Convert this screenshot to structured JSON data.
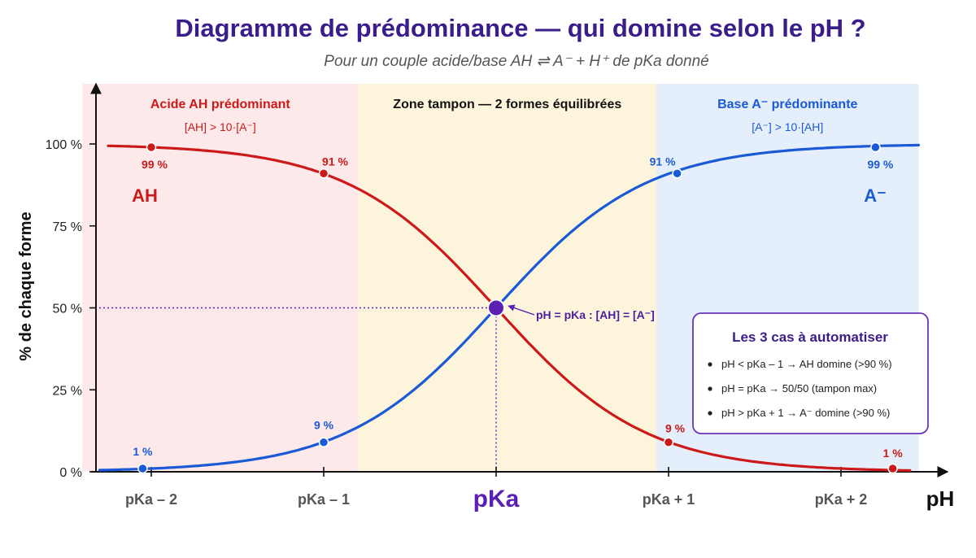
{
  "chart_data": {
    "type": "line",
    "title": "Diagramme de prédominance — qui domine selon le pH ?",
    "subtitle": "Pour un couple acide/base AH ⇌ A⁻ + H⁺ de pKa donné",
    "xlabel": "pH",
    "ylabel": "% de chaque forme",
    "xlim": [
      -2.4,
      2.6
    ],
    "ylim": [
      0,
      100
    ],
    "x_ticks": [
      {
        "value": -2,
        "label": "pKa – 2"
      },
      {
        "value": -1,
        "label": "pKa – 1"
      },
      {
        "value": 0,
        "label": "pKa",
        "emphasis": true
      },
      {
        "value": 1,
        "label": "pKa + 1"
      },
      {
        "value": 2,
        "label": "pKa + 2"
      }
    ],
    "y_ticks": [
      {
        "value": 0,
        "label": "0 %"
      },
      {
        "value": 25,
        "label": "25 %"
      },
      {
        "value": 50,
        "label": "50 %"
      },
      {
        "value": 75,
        "label": "75 %"
      },
      {
        "value": 100,
        "label": "100 %"
      }
    ],
    "regions": [
      {
        "from": -2.4,
        "to": -0.8,
        "color": "#fde9e9",
        "title": "Acide AH  prédominant",
        "subtitle": "[AH] > 10·[A⁻]",
        "text_color": "#cc1a1a"
      },
      {
        "from": -0.8,
        "to": 0.93,
        "color": "#fdf4dc",
        "title": "Zone tampon — 2 formes équilibrées",
        "subtitle": "",
        "text_color": "#111111"
      },
      {
        "from": 0.93,
        "to": 2.45,
        "color": "#e5eefb",
        "title": "Base A⁻  prédominante",
        "subtitle": "[A⁻] > 10·[AH]",
        "text_color": "#1a5ad6"
      }
    ],
    "series": [
      {
        "name": "AH",
        "color": "#cc1a1a",
        "points": [
          {
            "x": -2,
            "y": 99,
            "label": "99 %"
          },
          {
            "x": -1,
            "y": 91,
            "label": "91 %"
          },
          {
            "x": 0,
            "y": 50,
            "label": ""
          },
          {
            "x": 1,
            "y": 9,
            "label": "9 %"
          },
          {
            "x": 2.3,
            "y": 1,
            "label": "1 %"
          }
        ]
      },
      {
        "name": "A⁻",
        "color": "#1a5ad6",
        "points": [
          {
            "x": -2.05,
            "y": 1,
            "label": "1 %"
          },
          {
            "x": -1,
            "y": 9,
            "label": "9 %"
          },
          {
            "x": 0,
            "y": 50,
            "label": ""
          },
          {
            "x": 1.05,
            "y": 91,
            "label": "91 %"
          },
          {
            "x": 2.2,
            "y": 99,
            "label": "99 %"
          }
        ]
      }
    ],
    "equivalence": {
      "x": 0,
      "y": 50,
      "label": "pH = pKa : [AH] = [A⁻]",
      "color": "#5a1fb3"
    },
    "legend": {
      "position": "bottom-right",
      "title": "Les 3 cas à automatiser",
      "items": [
        "pH < pKa – 1 → AH domine (>90 %)",
        "pH = pKa → 50/50 (tampon max)",
        "pH > pKa + 1 → A⁻ domine (>90 %)"
      ]
    },
    "grid": false
  }
}
